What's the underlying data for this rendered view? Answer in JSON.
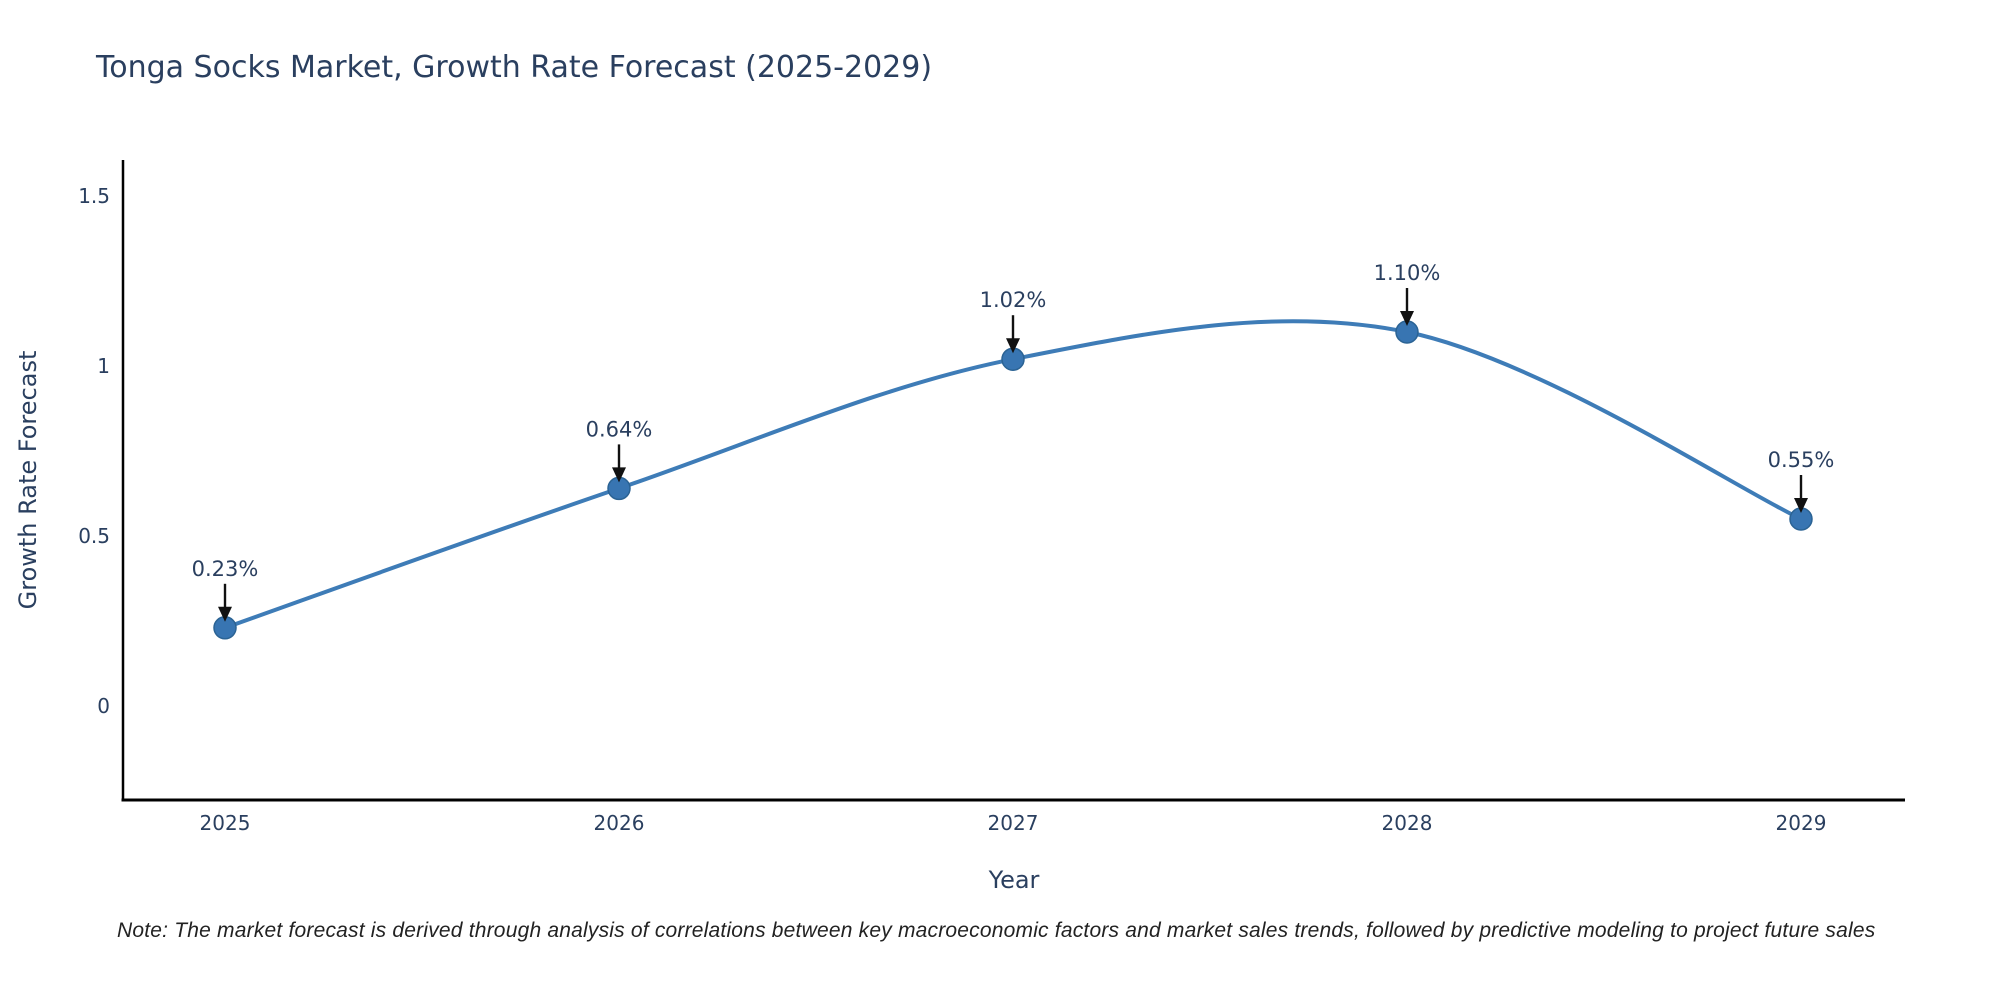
{
  "chart": {
    "title": "Tonga Socks Market, Growth Rate Forecast (2025-2029)",
    "note": "Note: The market forecast is derived through analysis of correlations between key macroeconomic factors and market sales trends, followed by predictive modeling to project future sales"
  },
  "chart_data": {
    "type": "line",
    "title": "Tonga Socks Market, Growth Rate Forecast (2025-2029)",
    "categories": [
      "2025",
      "2026",
      "2027",
      "2028",
      "2029"
    ],
    "values": [
      0.23,
      0.64,
      1.02,
      1.1,
      0.55
    ],
    "point_labels": [
      "0.23%",
      "0.64%",
      "1.02%",
      "1.10%",
      "0.55%"
    ],
    "xlabel": "Year",
    "ylabel": "Growth Rate Forecast",
    "yticks": [
      0,
      0.5,
      1,
      1.5
    ],
    "ytick_labels": [
      "0",
      "0.5",
      "1",
      "1.5"
    ],
    "ylim": [
      -0.28,
      1.61
    ],
    "line_shape": "spline",
    "grid": false,
    "legend": "none",
    "annotation_style": "value-label-with-down-arrow",
    "colors": {
      "line": "#3e7cb7",
      "marker_fill": "#3875b2",
      "marker_edge": "#2b6394",
      "arrow": "#111111",
      "label_text": "#2a3f5f",
      "axis_line": "#000000",
      "note_text": "#222222"
    }
  }
}
